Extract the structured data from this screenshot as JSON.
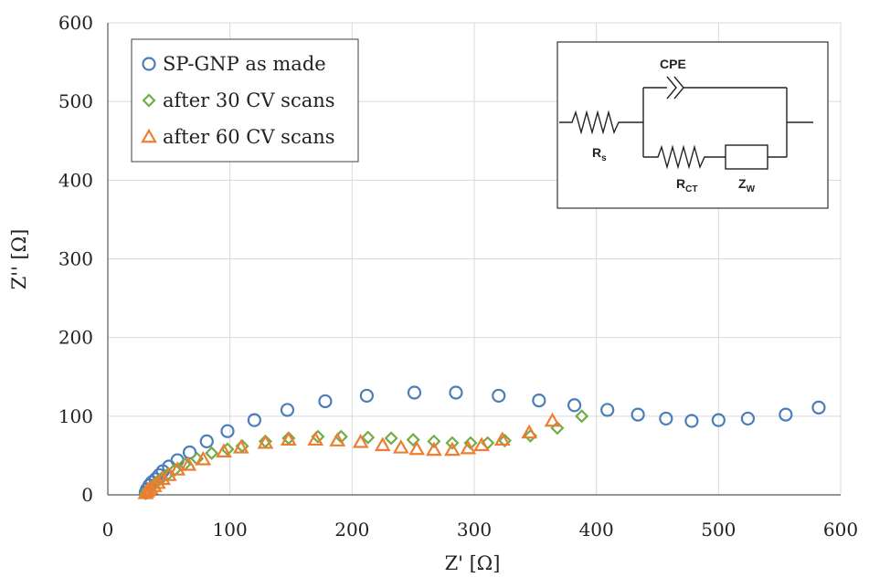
{
  "colors": {
    "series_1": "#4a7ebb",
    "series_2": "#70ad47",
    "series_3": "#ed7d31",
    "grid": "#d9d9d9",
    "axis": "#595959"
  },
  "chart_data": {
    "type": "scatter",
    "title": "",
    "xlabel": "Z' [Ω]",
    "ylabel": "Z'' [Ω]",
    "xlim": [
      0,
      600
    ],
    "ylim": [
      0,
      600
    ],
    "x_ticks": [
      "0",
      "100",
      "200",
      "300",
      "400",
      "500",
      "600"
    ],
    "y_ticks": [
      "0",
      "100",
      "200",
      "300",
      "400",
      "500",
      "600"
    ],
    "grid": true,
    "legend_position": "top-left",
    "series": [
      {
        "name": "SP-GNP as made",
        "marker": "circle",
        "color": "#4a7ebb",
        "points": [
          [
            31,
            3
          ],
          [
            32,
            7
          ],
          [
            34,
            12
          ],
          [
            36,
            16
          ],
          [
            39,
            20
          ],
          [
            42,
            25
          ],
          [
            45,
            30
          ],
          [
            50,
            36
          ],
          [
            57,
            44
          ],
          [
            67,
            54
          ],
          [
            81,
            68
          ],
          [
            98,
            81
          ],
          [
            120,
            95
          ],
          [
            147,
            108
          ],
          [
            178,
            119
          ],
          [
            212,
            126
          ],
          [
            251,
            130
          ],
          [
            285,
            130
          ],
          [
            320,
            126
          ],
          [
            353,
            120
          ],
          [
            382,
            114
          ],
          [
            409,
            108
          ],
          [
            434,
            102
          ],
          [
            457,
            97
          ],
          [
            478,
            94
          ],
          [
            500,
            95
          ],
          [
            524,
            97
          ],
          [
            555,
            102
          ],
          [
            582,
            111
          ]
        ]
      },
      {
        "name": "after 30 CV scans",
        "marker": "diamond",
        "color": "#70ad47",
        "points": [
          [
            31,
            2
          ],
          [
            32,
            4
          ],
          [
            33,
            6
          ],
          [
            35,
            9
          ],
          [
            37,
            12
          ],
          [
            40,
            16
          ],
          [
            44,
            21
          ],
          [
            49,
            26
          ],
          [
            55,
            32
          ],
          [
            63,
            39
          ],
          [
            73,
            46
          ],
          [
            85,
            53
          ],
          [
            98,
            58
          ],
          [
            110,
            62
          ],
          [
            129,
            68
          ],
          [
            148,
            72
          ],
          [
            172,
            74
          ],
          [
            191,
            74
          ],
          [
            213,
            73
          ],
          [
            232,
            72
          ],
          [
            250,
            70
          ],
          [
            267,
            68
          ],
          [
            282,
            66
          ],
          [
            297,
            66
          ],
          [
            311,
            66
          ],
          [
            325,
            69
          ],
          [
            346,
            75
          ],
          [
            368,
            85
          ],
          [
            388,
            100
          ]
        ]
      },
      {
        "name": "after 60 CV scans",
        "marker": "triangle",
        "color": "#ed7d31",
        "points": [
          [
            31,
            2
          ],
          [
            32,
            4
          ],
          [
            33,
            6
          ],
          [
            35,
            8
          ],
          [
            38,
            11
          ],
          [
            41,
            15
          ],
          [
            45,
            20
          ],
          [
            50,
            25
          ],
          [
            57,
            32
          ],
          [
            66,
            38
          ],
          [
            78,
            45
          ],
          [
            95,
            55
          ],
          [
            109,
            60
          ],
          [
            129,
            66
          ],
          [
            148,
            70
          ],
          [
            170,
            70
          ],
          [
            188,
            69
          ],
          [
            207,
            67
          ],
          [
            225,
            63
          ],
          [
            240,
            60
          ],
          [
            253,
            58
          ],
          [
            267,
            57
          ],
          [
            282,
            57
          ],
          [
            295,
            59
          ],
          [
            306,
            63
          ],
          [
            323,
            70
          ],
          [
            345,
            79
          ],
          [
            364,
            94
          ]
        ]
      }
    ]
  },
  "circuit": {
    "cpe_label": "CPE",
    "rs_main": "R",
    "rs_sub": "s",
    "rct_main": "R",
    "rct_sub": "CT",
    "zw_main": "Z",
    "zw_sub": "W"
  }
}
